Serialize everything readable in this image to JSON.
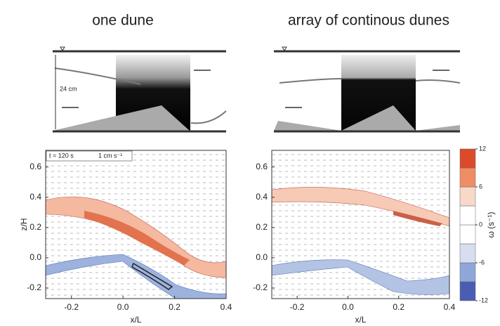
{
  "chart_data": [
    {
      "type": "contour",
      "title": "one dune",
      "xlabel": "x/L",
      "ylabel": "z/H",
      "annotations": [
        "24 cm",
        "t = 120 s",
        "1 cm s⁻¹"
      ],
      "xlim": [
        -0.3,
        0.4
      ],
      "ylim": [
        -0.27,
        0.71
      ],
      "xticks": [
        -0.2,
        {
          "value": 0,
          "label": "0.0"
        },
        0.2,
        0.4
      ],
      "yticks": [
        -0.2,
        {
          "value": 0,
          "label": "0.0"
        },
        0.2,
        0.4,
        0.6
      ]
    },
    {
      "type": "contour",
      "title": "array of continous dunes",
      "xlabel": "x/L",
      "xlim": [
        -0.3,
        0.4
      ],
      "ylim": [
        -0.27,
        0.71
      ],
      "xticks": [
        -0.2,
        {
          "value": 0,
          "label": "0.0"
        },
        0.2,
        0.4
      ],
      "yticks": [
        -0.2,
        {
          "value": 0,
          "label": "0.0"
        },
        0.2,
        0.4,
        0.6
      ]
    }
  ],
  "colorbar": {
    "label": "ω (s⁻¹)",
    "lim": [
      -12,
      12
    ],
    "ticks": [
      -12,
      -6,
      0,
      6,
      12
    ],
    "colors": [
      "#4b5db3",
      "#8ea6d8",
      "#d6def0",
      "#ffffff",
      "#ffffff",
      "#f8d8c8",
      "#ef8e64",
      "#dc4a2a"
    ]
  }
}
